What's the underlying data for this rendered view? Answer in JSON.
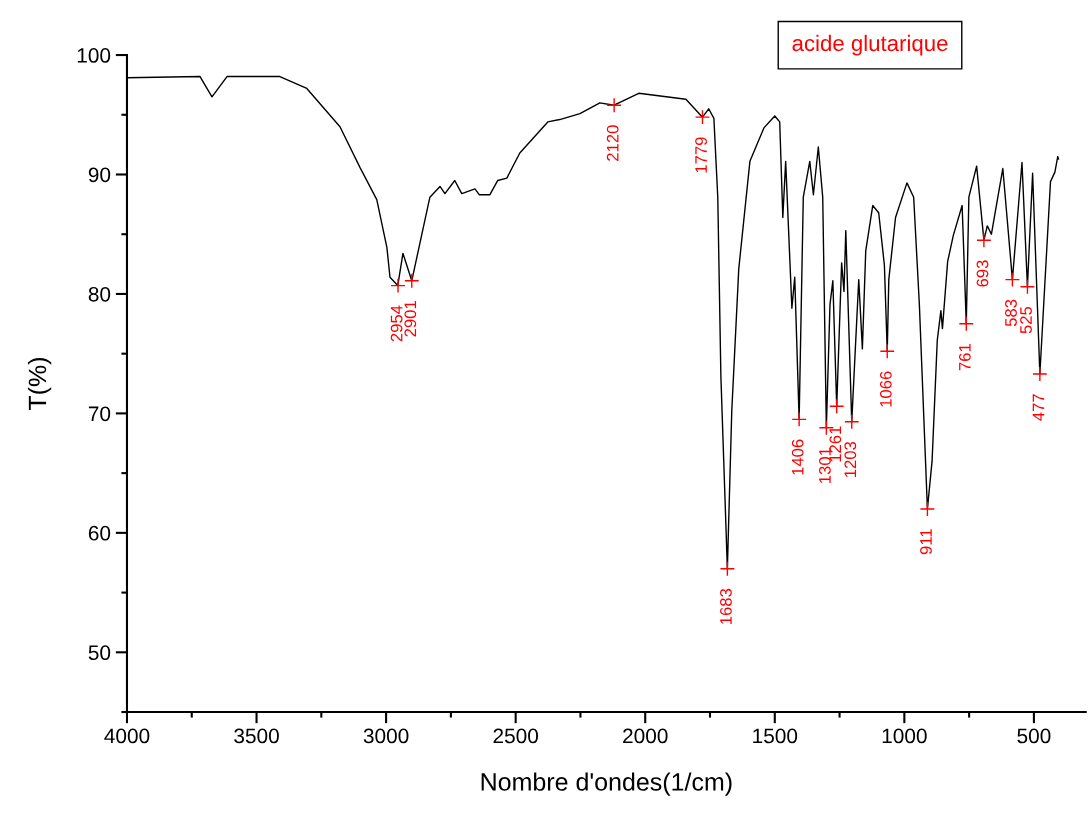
{
  "chart_data": {
    "type": "line",
    "title": "acide glutarique",
    "xlabel": "Nombre d'ondes(1/cm)",
    "ylabel": "T(%)",
    "xlim": [
      4000,
      300
    ],
    "ylim": [
      45,
      100
    ],
    "xticks": [
      4000,
      {
        "value": 3750,
        "label": null
      },
      3500,
      {
        "value": 3250,
        "label": null
      },
      3000,
      {
        "value": 2750,
        "label": null
      },
      2500,
      {
        "value": 2250,
        "label": null
      },
      2000,
      {
        "value": 1750,
        "label": null
      },
      1500,
      {
        "value": 1250,
        "label": null
      },
      1000,
      {
        "value": 750,
        "label": null
      },
      500
    ],
    "yticks": [
      {
        "value": 45,
        "label": null
      },
      50,
      {
        "value": 55,
        "label": null
      },
      60,
      {
        "value": 65,
        "label": null
      },
      70,
      {
        "value": 75,
        "label": null
      },
      80,
      {
        "value": 85,
        "label": null
      },
      90,
      {
        "value": 95,
        "label": null
      },
      100
    ],
    "grid": false,
    "marker": "none",
    "line_style": "solid",
    "series": [
      {
        "color": "#000000",
        "x": [
          4000,
          3718,
          3672,
          3614,
          3410,
          3306,
          3178,
          3101,
          3036,
          2997,
          2985,
          2955,
          2935,
          2901,
          2831,
          2792,
          2773,
          2735,
          2708,
          2657,
          2640,
          2600,
          2569,
          2534,
          2484,
          2376,
          2330,
          2252,
          2175,
          2120,
          2025,
          1843,
          1779,
          1755,
          1735,
          1720,
          1708,
          1683,
          1666,
          1639,
          1596,
          1542,
          1500,
          1481,
          1469,
          1458,
          1434,
          1423,
          1406,
          1390,
          1365,
          1351,
          1332,
          1315,
          1301,
          1287,
          1276,
          1261,
          1242,
          1233,
          1226,
          1203,
          1176,
          1162,
          1149,
          1122,
          1099,
          1077,
          1066,
          1060,
          1034,
          990,
          964,
          942,
          911,
          893,
          873,
          859,
          853,
          833,
          811,
          777,
          761,
          751,
          721,
          693,
          680,
          664,
          620,
          583,
          546,
          525,
          505,
          477,
          436,
          419,
          408,
          405
        ],
        "values": [
          98.1,
          98.2,
          96.5,
          98.2,
          98.2,
          97.2,
          94.0,
          90.6,
          87.9,
          83.9,
          81.4,
          80.7,
          83.4,
          81.1,
          88.1,
          89.0,
          88.4,
          89.5,
          88.4,
          88.8,
          88.3,
          88.3,
          89.5,
          89.7,
          91.8,
          94.4,
          94.6,
          95.1,
          96.0,
          95.8,
          96.8,
          96.3,
          94.8,
          95.5,
          94.7,
          88.1,
          73.1,
          57.0,
          70.2,
          82.1,
          91.1,
          93.9,
          94.9,
          94.4,
          86.4,
          91.1,
          78.8,
          81.4,
          69.5,
          88.1,
          91.1,
          88.3,
          92.3,
          88.1,
          68.8,
          79.1,
          81.1,
          70.6,
          82.6,
          80.2,
          85.3,
          69.3,
          81.2,
          75.4,
          83.6,
          87.4,
          86.8,
          82.4,
          75.2,
          81.2,
          86.4,
          89.3,
          88.1,
          79.1,
          62.0,
          66.0,
          76.1,
          78.6,
          77.1,
          82.7,
          84.9,
          87.4,
          77.5,
          88.1,
          90.7,
          84.5,
          85.7,
          85.0,
          90.5,
          81.2,
          91.0,
          80.6,
          90.1,
          73.3,
          89.4,
          90.2,
          91.5,
          91.3
        ]
      }
    ],
    "annotations": [
      {
        "text": "2954",
        "x": 2954,
        "y": 80.7
      },
      {
        "text": "2901",
        "x": 2901,
        "y": 81.1
      },
      {
        "text": "2120",
        "x": 2120,
        "y": 95.8
      },
      {
        "text": "1779",
        "x": 1779,
        "y": 94.8
      },
      {
        "text": "1683",
        "x": 1683,
        "y": 57.0
      },
      {
        "text": "1406",
        "x": 1406,
        "y": 69.5
      },
      {
        "text": "1301",
        "x": 1301,
        "y": 68.8
      },
      {
        "text": "1261",
        "x": 1261,
        "y": 70.6
      },
      {
        "text": "1203",
        "x": 1203,
        "y": 69.3
      },
      {
        "text": "1066",
        "x": 1066,
        "y": 75.2
      },
      {
        "text": "911",
        "x": 911,
        "y": 62.0
      },
      {
        "text": "761",
        "x": 761,
        "y": 77.5
      },
      {
        "text": "693",
        "x": 693,
        "y": 84.5
      },
      {
        "text": "583",
        "x": 583,
        "y": 81.2
      },
      {
        "text": "525",
        "x": 525,
        "y": 80.6
      },
      {
        "text": "477",
        "x": 477,
        "y": 73.3
      }
    ]
  }
}
